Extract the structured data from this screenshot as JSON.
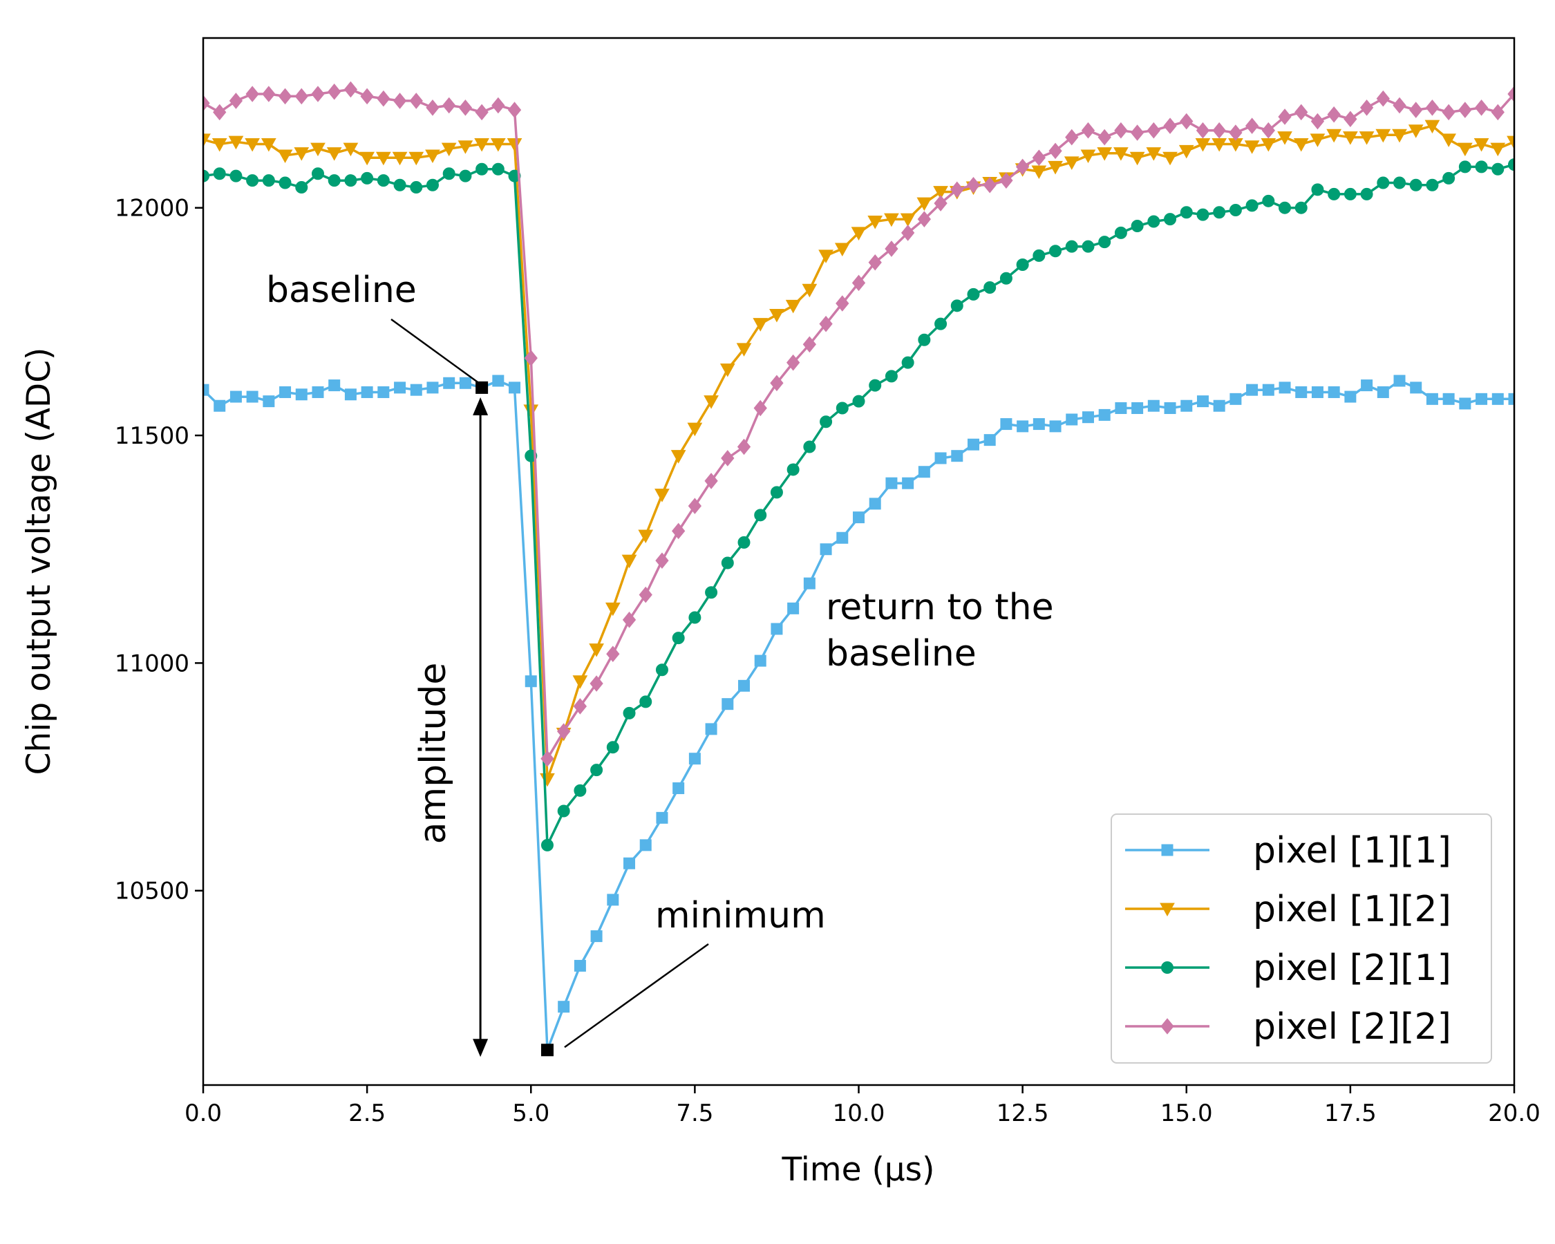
{
  "chart_data": {
    "type": "line",
    "title": "",
    "xlabel": "Time (µs)",
    "ylabel": "Chip output voltage (ADC)",
    "xlim": [
      0,
      20
    ],
    "ylim": [
      10073,
      12373
    ],
    "xticks": [
      0,
      2.5,
      5,
      7.5,
      10,
      12.5,
      15,
      17.5,
      20
    ],
    "xtick_labels": [
      "0.0",
      "2.5",
      "5.0",
      "7.5",
      "10.0",
      "12.5",
      "15.0",
      "17.5",
      "20.0"
    ],
    "yticks": [
      10500,
      11000,
      11500,
      12000
    ],
    "ytick_labels": [
      "10500",
      "11000",
      "11500",
      "12000"
    ],
    "legend_position": "lower-right",
    "series": [
      {
        "name": "pixel [1][1]",
        "color": "#56b4e9",
        "marker": "square",
        "x": [
          0,
          0.25,
          0.5,
          0.75,
          1,
          1.25,
          1.5,
          1.75,
          2,
          2.25,
          2.5,
          2.75,
          3,
          3.25,
          3.5,
          3.75,
          4,
          4.25,
          4.5,
          4.75,
          5,
          5.25,
          5.5,
          5.75,
          6,
          6.25,
          6.5,
          6.75,
          7,
          7.25,
          7.5,
          7.75,
          8,
          8.25,
          8.5,
          8.75,
          9,
          9.25,
          9.5,
          9.75,
          10,
          10.25,
          10.5,
          10.75,
          11,
          11.25,
          11.5,
          11.75,
          12,
          12.25,
          12.5,
          12.75,
          13,
          13.25,
          13.5,
          13.75,
          14,
          14.25,
          14.5,
          14.75,
          15,
          15.25,
          15.5,
          15.75,
          16,
          16.25,
          16.5,
          16.75,
          17,
          17.25,
          17.5,
          17.75,
          18,
          18.25,
          18.5,
          18.75,
          19,
          19.25,
          19.5,
          19.75,
          20
        ],
        "y": [
          11600,
          11565,
          11585,
          11585,
          11575,
          11595,
          11590,
          11595,
          11610,
          11590,
          11595,
          11595,
          11605,
          11600,
          11605,
          11615,
          11615,
          11605,
          11620,
          11605,
          10960,
          10150,
          10245,
          10335,
          10400,
          10480,
          10560,
          10600,
          10660,
          10725,
          10790,
          10855,
          10910,
          10950,
          11005,
          11075,
          11120,
          11175,
          11250,
          11275,
          11320,
          11350,
          11395,
          11395,
          11420,
          11450,
          11455,
          11480,
          11490,
          11525,
          11520,
          11525,
          11520,
          11535,
          11540,
          11545,
          11560,
          11560,
          11565,
          11560,
          11565,
          11575,
          11565,
          11580,
          11600,
          11600,
          11605,
          11595,
          11595,
          11595,
          11585,
          11610,
          11595,
          11620,
          11605,
          11580,
          11580,
          11570,
          11580,
          11580,
          11580
        ]
      },
      {
        "name": "pixel [1][2]",
        "color": "#e69f00",
        "marker": "triangle-down",
        "x": [
          0,
          0.25,
          0.5,
          0.75,
          1,
          1.25,
          1.5,
          1.75,
          2,
          2.25,
          2.5,
          2.75,
          3,
          3.25,
          3.5,
          3.75,
          4,
          4.25,
          4.5,
          4.75,
          5,
          5.25,
          5.5,
          5.75,
          6,
          6.25,
          6.5,
          6.75,
          7,
          7.25,
          7.5,
          7.75,
          8,
          8.25,
          8.5,
          8.75,
          9,
          9.25,
          9.5,
          9.75,
          10,
          10.25,
          10.5,
          10.75,
          11,
          11.25,
          11.5,
          11.75,
          12,
          12.25,
          12.5,
          12.75,
          13,
          13.25,
          13.5,
          13.75,
          14,
          14.25,
          14.5,
          14.75,
          15,
          15.25,
          15.5,
          15.75,
          16,
          16.25,
          16.5,
          16.75,
          17,
          17.25,
          17.5,
          17.75,
          18,
          18.25,
          18.5,
          18.75,
          19,
          19.25,
          19.5,
          19.75,
          20
        ],
        "y": [
          12150,
          12140,
          12145,
          12140,
          12140,
          12115,
          12120,
          12130,
          12120,
          12130,
          12110,
          12110,
          12110,
          12110,
          12115,
          12130,
          12135,
          12140,
          12140,
          12140,
          11555,
          10745,
          10845,
          10960,
          11030,
          11120,
          11225,
          11280,
          11370,
          11455,
          11515,
          11575,
          11645,
          11690,
          11745,
          11765,
          11785,
          11820,
          11895,
          11910,
          11945,
          11970,
          11975,
          11975,
          12010,
          12035,
          12035,
          12045,
          12055,
          12065,
          12085,
          12080,
          12090,
          12100,
          12115,
          12120,
          12120,
          12110,
          12120,
          12110,
          12125,
          12140,
          12140,
          12140,
          12135,
          12140,
          12155,
          12140,
          12150,
          12160,
          12155,
          12155,
          12160,
          12160,
          12170,
          12180,
          12150,
          12130,
          12140,
          12130,
          12145
        ]
      },
      {
        "name": "pixel [2][1]",
        "color": "#009e73",
        "marker": "circle",
        "x": [
          0,
          0.25,
          0.5,
          0.75,
          1,
          1.25,
          1.5,
          1.75,
          2,
          2.25,
          2.5,
          2.75,
          3,
          3.25,
          3.5,
          3.75,
          4,
          4.25,
          4.5,
          4.75,
          5,
          5.25,
          5.5,
          5.75,
          6,
          6.25,
          6.5,
          6.75,
          7,
          7.25,
          7.5,
          7.75,
          8,
          8.25,
          8.5,
          8.75,
          9,
          9.25,
          9.5,
          9.75,
          10,
          10.25,
          10.5,
          10.75,
          11,
          11.25,
          11.5,
          11.75,
          12,
          12.25,
          12.5,
          12.75,
          13,
          13.25,
          13.5,
          13.75,
          14,
          14.25,
          14.5,
          14.75,
          15,
          15.25,
          15.5,
          15.75,
          16,
          16.25,
          16.5,
          16.75,
          17,
          17.25,
          17.5,
          17.75,
          18,
          18.25,
          18.5,
          18.75,
          19,
          19.25,
          19.5,
          19.75,
          20
        ],
        "y": [
          12070,
          12075,
          12070,
          12060,
          12060,
          12055,
          12045,
          12075,
          12060,
          12060,
          12065,
          12060,
          12050,
          12045,
          12050,
          12075,
          12070,
          12085,
          12085,
          12070,
          11455,
          10600,
          10675,
          10720,
          10765,
          10815,
          10890,
          10915,
          10985,
          11055,
          11100,
          11155,
          11220,
          11265,
          11325,
          11375,
          11425,
          11475,
          11530,
          11560,
          11575,
          11610,
          11630,
          11660,
          11710,
          11745,
          11785,
          11810,
          11825,
          11845,
          11875,
          11895,
          11905,
          11915,
          11915,
          11925,
          11945,
          11960,
          11970,
          11975,
          11990,
          11985,
          11990,
          11995,
          12005,
          12015,
          12000,
          12000,
          12040,
          12030,
          12030,
          12030,
          12055,
          12055,
          12050,
          12050,
          12065,
          12090,
          12090,
          12085,
          12095
        ]
      },
      {
        "name": "pixel [2][2]",
        "color": "#cc79a7",
        "marker": "diamond",
        "x": [
          0,
          0.25,
          0.5,
          0.75,
          1,
          1.25,
          1.5,
          1.75,
          2,
          2.25,
          2.5,
          2.75,
          3,
          3.25,
          3.5,
          3.75,
          4,
          4.25,
          4.5,
          4.75,
          5,
          5.25,
          5.5,
          5.75,
          6,
          6.25,
          6.5,
          6.75,
          7,
          7.25,
          7.5,
          7.75,
          8,
          8.25,
          8.5,
          8.75,
          9,
          9.25,
          9.5,
          9.75,
          10,
          10.25,
          10.5,
          10.75,
          11,
          11.25,
          11.5,
          11.75,
          12,
          12.25,
          12.5,
          12.75,
          13,
          13.25,
          13.5,
          13.75,
          14,
          14.25,
          14.5,
          14.75,
          15,
          15.25,
          15.5,
          15.75,
          16,
          16.25,
          16.5,
          16.75,
          17,
          17.25,
          17.5,
          17.75,
          18,
          18.25,
          18.5,
          18.75,
          19,
          19.25,
          19.5,
          19.75,
          20
        ],
        "y": [
          12230,
          12210,
          12235,
          12250,
          12250,
          12245,
          12245,
          12250,
          12255,
          12260,
          12245,
          12240,
          12235,
          12235,
          12220,
          12225,
          12220,
          12210,
          12225,
          12215,
          11670,
          10790,
          10850,
          10905,
          10955,
          11020,
          11095,
          11150,
          11225,
          11290,
          11345,
          11400,
          11450,
          11475,
          11560,
          11615,
          11660,
          11700,
          11745,
          11790,
          11835,
          11880,
          11910,
          11945,
          11975,
          12010,
          12040,
          12050,
          12050,
          12060,
          12090,
          12110,
          12125,
          12155,
          12170,
          12155,
          12170,
          12165,
          12170,
          12180,
          12190,
          12170,
          12170,
          12165,
          12180,
          12170,
          12200,
          12210,
          12190,
          12205,
          12195,
          12220,
          12240,
          12225,
          12215,
          12220,
          12210,
          12215,
          12220,
          12210,
          12250
        ]
      }
    ],
    "annotations": {
      "baseline_label": "baseline",
      "baseline_point": {
        "x": 4.25,
        "y": 11605
      },
      "minimum_label": "minimum",
      "minimum_point": {
        "x": 5.25,
        "y": 10150
      },
      "amplitude_label": "amplitude",
      "return_label_line1": "return to the",
      "return_label_line2": "baseline"
    }
  }
}
